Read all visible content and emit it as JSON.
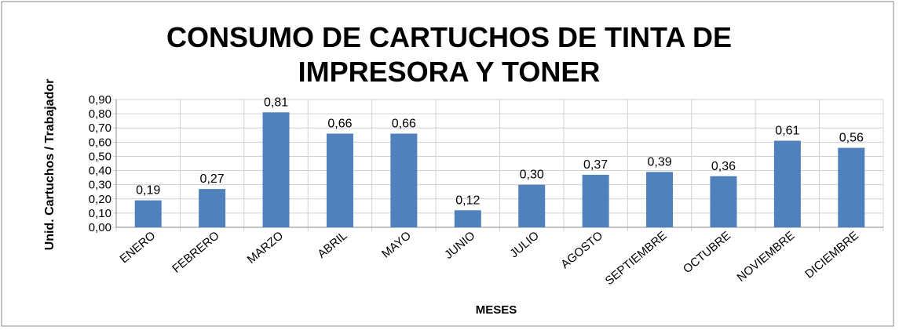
{
  "chart_data": {
    "type": "bar",
    "title": "CONSUMO DE CARTUCHOS DE TINTA DE IMPRESORA Y TONER",
    "x_label": "MESES",
    "y_label": "Unid. Cartuchos / Trabajador",
    "categories": [
      "ENERO",
      "FEBRERO",
      "MARZO",
      "ABRIL",
      "MAYO",
      "JUNIO",
      "JULIO",
      "AGOSTO",
      "SEPTIEMBRE",
      "OCTUBRE",
      "NOVIEMBRE",
      "DICIEMBRE"
    ],
    "values": [
      0.19,
      0.27,
      0.81,
      0.66,
      0.66,
      0.12,
      0.3,
      0.37,
      0.39,
      0.36,
      0.61,
      0.56
    ],
    "value_labels": [
      "0,19",
      "0,27",
      "0,81",
      "0,66",
      "0,66",
      "0,12",
      "0,30",
      "0,37",
      "0,39",
      "0,36",
      "0,61",
      "0,56"
    ],
    "color": "#4f81bd",
    "ylim": [
      0,
      0.9
    ],
    "yticks": [
      {
        "value": 0,
        "label": "0,00"
      },
      {
        "value": 0.1,
        "label": "0,10"
      },
      {
        "value": 0.2,
        "label": "0,20"
      },
      {
        "value": 0.3,
        "label": "0,30"
      },
      {
        "value": 0.4,
        "label": "0,40"
      },
      {
        "value": 0.5,
        "label": "0,50"
      },
      {
        "value": 0.6,
        "label": "0,60"
      },
      {
        "value": 0.7,
        "label": "0,70"
      },
      {
        "value": 0.8,
        "label": "0,80"
      },
      {
        "value": 0.9,
        "label": "0,90"
      }
    ],
    "grid": true
  }
}
